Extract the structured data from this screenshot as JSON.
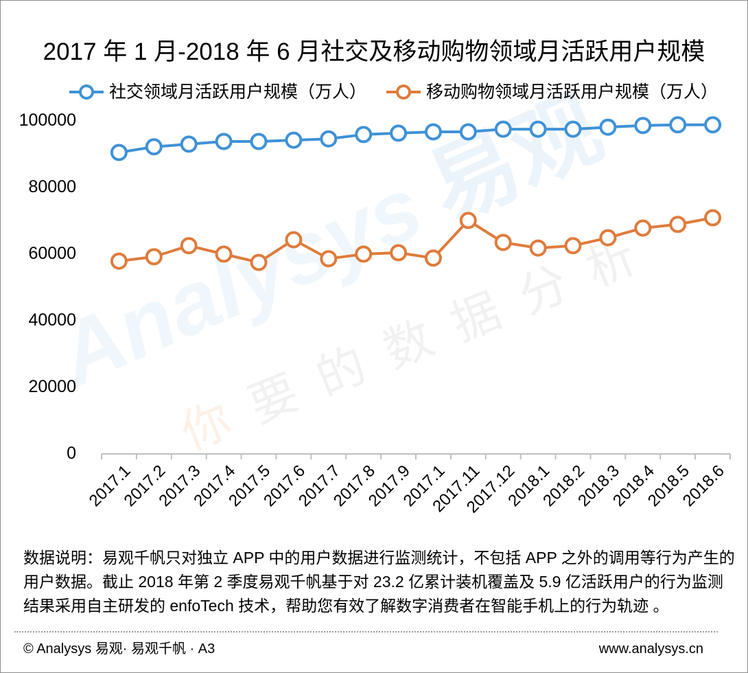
{
  "chart_data": {
    "type": "line",
    "title": "2017 年 1 月-2018 年 6 月社交及移动购物领域月活跃用户规模",
    "categories": [
      "2017.1",
      "2017.2",
      "2017.3",
      "2017.4",
      "2017.5",
      "2017.6",
      "2017.7",
      "2017.8",
      "2017.9",
      "2017.1",
      "2017.11",
      "2017.12",
      "2018.1",
      "2018.2",
      "2018.3",
      "2018.4",
      "2018.5",
      "2018.6"
    ],
    "series": [
      {
        "name": "社交领域月活跃用户规模（万人）",
        "color": "#3F92D6",
        "values": [
          90300,
          92000,
          92800,
          93600,
          93600,
          94000,
          94400,
          95700,
          96100,
          96500,
          96500,
          97300,
          97300,
          97300,
          97900,
          98400,
          98600,
          98600
        ]
      },
      {
        "name": "移动购物领域月活跃用户规模（万人）",
        "color": "#DE7C3C",
        "values": [
          57700,
          59000,
          62300,
          59800,
          57300,
          64100,
          58400,
          59800,
          60200,
          58600,
          69900,
          63300,
          61600,
          62300,
          64700,
          67600,
          68700,
          70700
        ]
      }
    ],
    "xlabel": "",
    "ylabel": "",
    "ylim": [
      0,
      100000
    ],
    "yticks": [
      0,
      20000,
      40000,
      60000,
      80000,
      100000
    ],
    "grid": false,
    "legend_position": "top"
  },
  "note": "数据说明：易观千帆只对独立 APP 中的用户数据进行监测统计，不包括 APP 之外的调用等行为产生的用户数据。截止 2018 年第 2 季度易观千帆基于对 23.2 亿累计装机覆盖及 5.9 亿活跃用户的行为监测结果采用自主研发的 enfoTech 技术，帮助您有效了解数字消费者在智能手机上的行为轨迹 。",
  "footer": {
    "left": "© Analysys 易观· 易观千帆 · A3",
    "right": "www.analysys.cn"
  },
  "watermark": {
    "brand": "Analysys",
    "brand_cn": "易观",
    "slogan": "你要的数据分析"
  }
}
